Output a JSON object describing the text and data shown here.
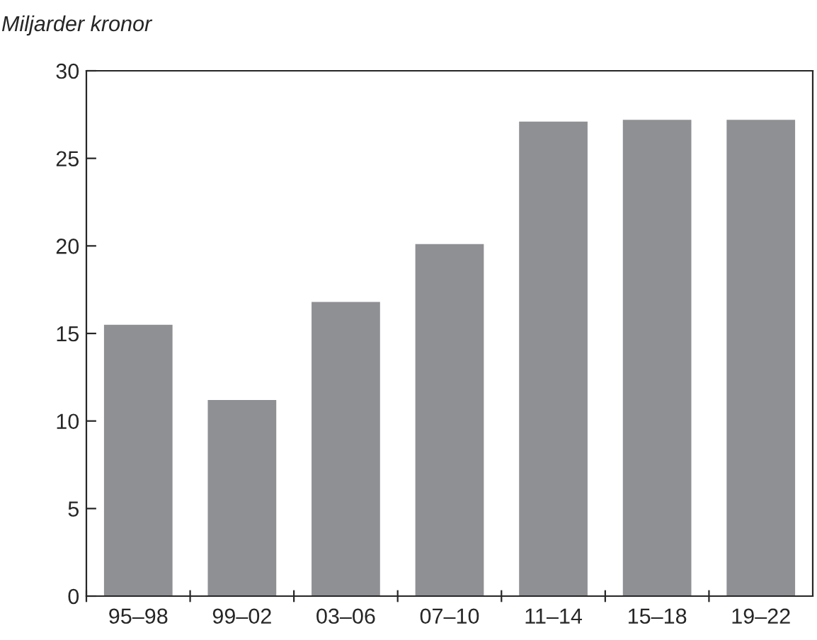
{
  "chart_data": {
    "type": "bar",
    "ylabel": "Miljarder kronor",
    "categories": [
      "95–98",
      "99–02",
      "03–06",
      "07–10",
      "11–14",
      "15–18",
      "19–22"
    ],
    "values": [
      15.5,
      11.2,
      16.8,
      20.1,
      27.1,
      27.2,
      27.2
    ],
    "color": "#8f9094",
    "ylim": [
      0,
      30
    ],
    "yticks": [
      0,
      5,
      10,
      15,
      20,
      25,
      30
    ],
    "grid": false
  }
}
